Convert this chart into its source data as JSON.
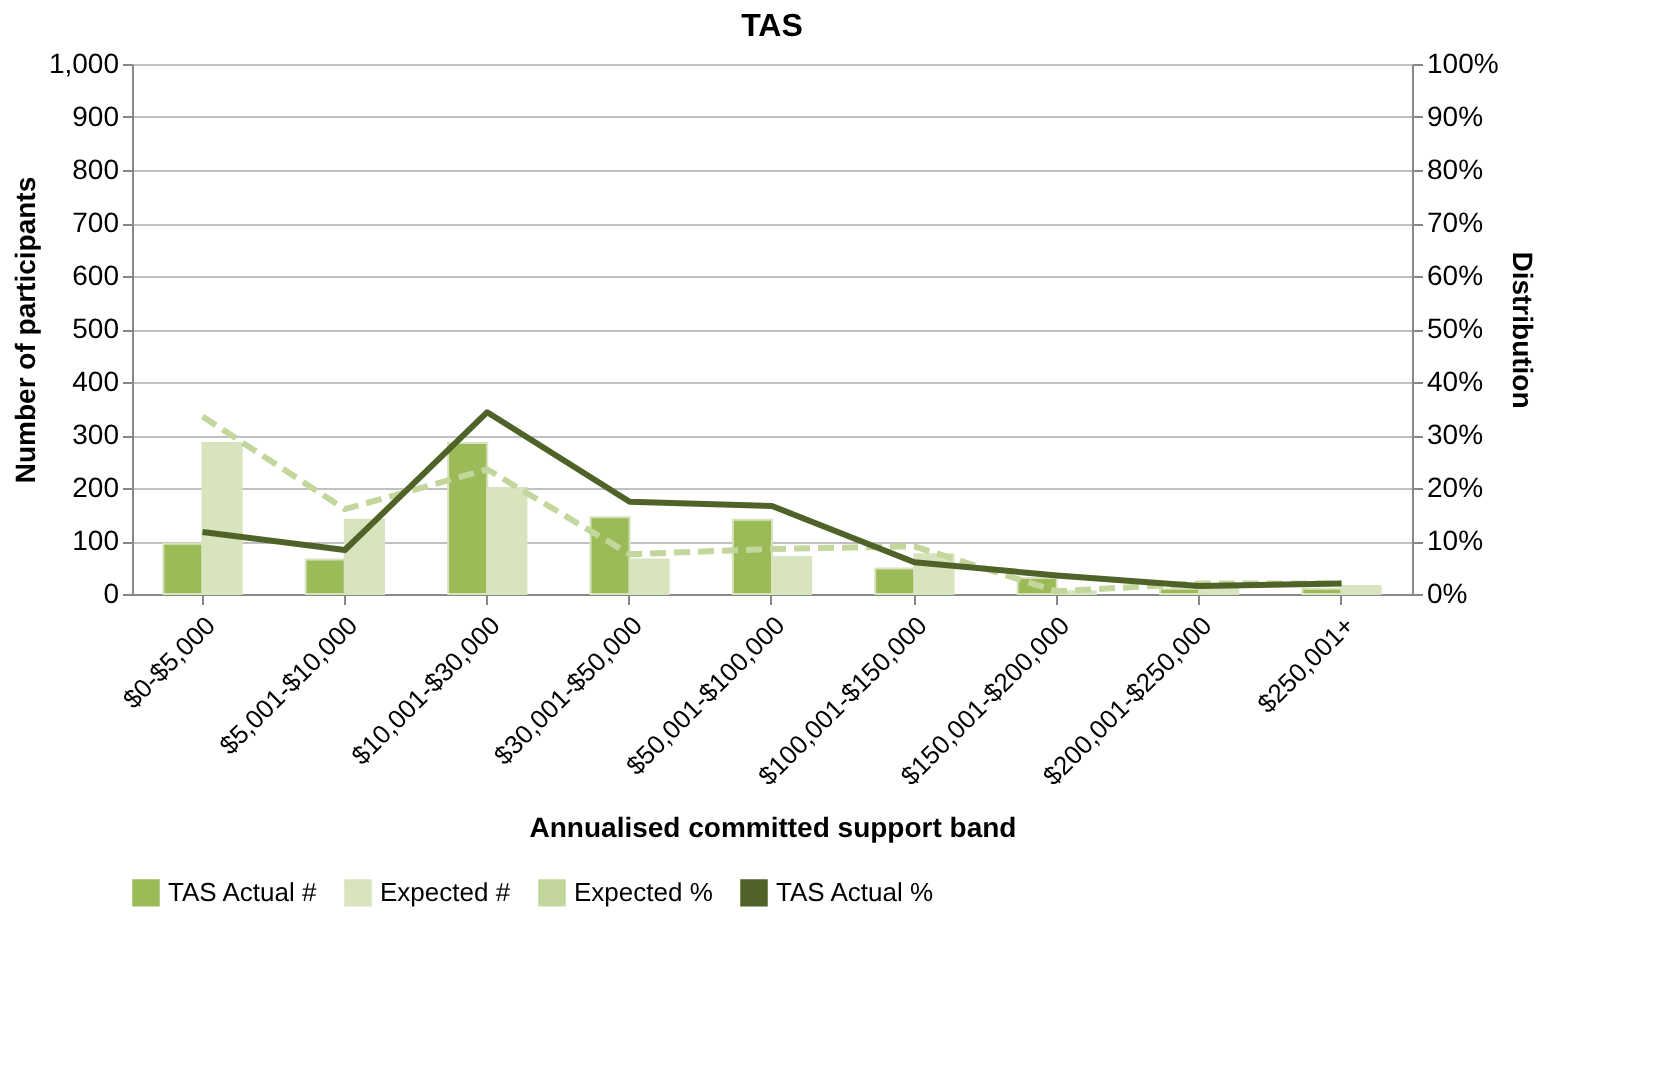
{
  "chart_data": {
    "type": "bar",
    "title": "TAS",
    "xlabel": "Annualised committed support band",
    "ylabel": "Number of participants",
    "y2label": "Distribution",
    "categories": [
      "$0-$5,000",
      "$5,001-$10,000",
      "$10,001-$30,000",
      "$30,001-$50,000",
      "$50,001-$100,000",
      "$100,001-$150,000",
      "$150,001-$200,000",
      "$200,001-$250,000",
      "$250,001+"
    ],
    "series": [
      {
        "name": "TAS Actual #",
        "color": "#9bbb59",
        "values": [
          95,
          65,
          285,
          145,
          140,
          48,
          30,
          10,
          10
        ]
      },
      {
        "name": "Expected #",
        "color": "#d7e4bd",
        "values": [
          285,
          140,
          200,
          65,
          70,
          75,
          5,
          15,
          15
        ]
      },
      {
        "name": "Expected %",
        "type": "line",
        "axis": "y2",
        "line_style": "dashed",
        "color": "#c3d69b",
        "values": [
          33.5,
          16,
          23.5,
          7.5,
          8.5,
          9,
          0.5,
          2,
          2
        ]
      },
      {
        "name": "TAS Actual %",
        "type": "line",
        "axis": "y2",
        "line_style": "solid",
        "color": "#4f6228",
        "values": [
          11.7,
          8.3,
          34.3,
          17.4,
          16.6,
          6,
          3.5,
          1.5,
          2
        ]
      }
    ],
    "ylim": [
      0,
      1000
    ],
    "yticks": [
      0,
      100,
      200,
      300,
      400,
      500,
      600,
      700,
      800,
      900,
      {
        "value": 1000,
        "label": "1,000"
      }
    ],
    "y2lim": [
      0,
      100
    ],
    "y2ticks": [
      {
        "value": 0,
        "label": "0%"
      },
      {
        "value": 10,
        "label": "10%"
      },
      {
        "value": 20,
        "label": "20%"
      },
      {
        "value": 30,
        "label": "30%"
      },
      {
        "value": 40,
        "label": "40%"
      },
      {
        "value": 50,
        "label": "50%"
      },
      {
        "value": 60,
        "label": "60%"
      },
      {
        "value": 70,
        "label": "70%"
      },
      {
        "value": 80,
        "label": "80%"
      },
      {
        "value": 90,
        "label": "90%"
      },
      {
        "value": 100,
        "label": "100%"
      }
    ],
    "grid": "y",
    "legend": "bottom"
  }
}
